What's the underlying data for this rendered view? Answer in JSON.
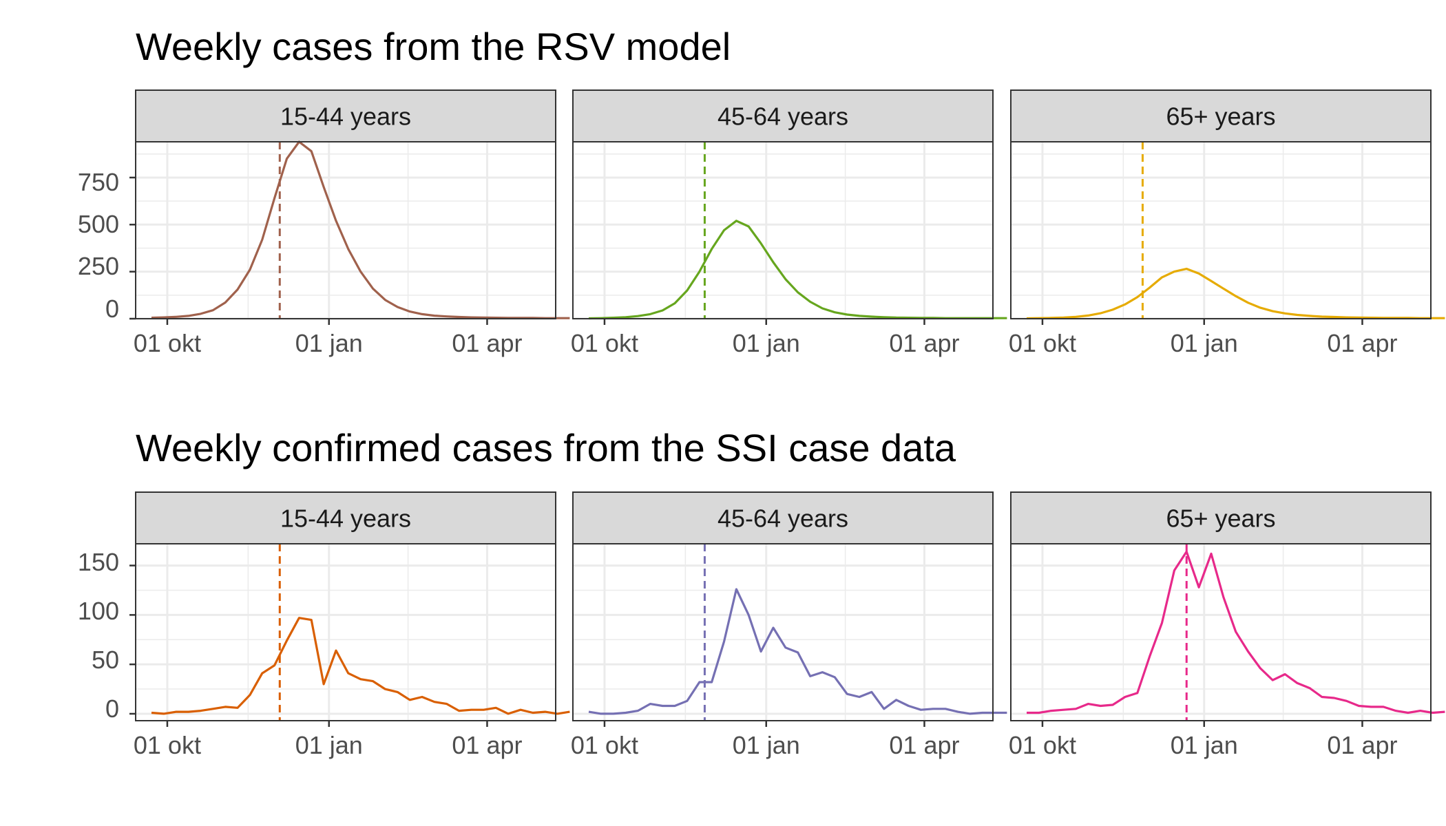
{
  "rows": [
    {
      "title": "Weekly cases from the RSV model",
      "y_ticks": [
        "0",
        "250",
        "500",
        "750"
      ]
    },
    {
      "title": "Weekly confirmed cases from the SSI case data",
      "y_ticks": [
        "0",
        "50",
        "100",
        "150"
      ]
    }
  ],
  "x_ticks": [
    "01 okt",
    "01 jan",
    "01 apr"
  ],
  "chart_data": [
    {
      "type": "line",
      "title": "Weekly cases from the RSV model",
      "facets": [
        "15-44 years",
        "45-64 years",
        "65+ years"
      ],
      "x_axis": {
        "type": "date",
        "start_week": "2022-09-22",
        "step_days": 7,
        "ticks": [
          "2022-10-01",
          "2023-01-01",
          "2023-04-01"
        ],
        "tick_labels": [
          "01 okt",
          "01 jan",
          "01 apr"
        ]
      },
      "ylim": [
        0,
        940
      ],
      "y_ticks": [
        0,
        250,
        500,
        750
      ],
      "grid": true,
      "peak_marker": {
        "style": "dashed vertical line",
        "dates": [
          "2022-12-04",
          "2022-11-27",
          "2022-11-27"
        ]
      },
      "series": [
        {
          "facet": "15-44 years",
          "color": "#A0614C",
          "values": [
            5,
            7,
            10,
            15,
            26,
            45,
            86,
            155,
            260,
            420,
            640,
            850,
            940,
            890,
            700,
            520,
            370,
            250,
            160,
            100,
            62,
            38,
            24,
            16,
            12,
            9,
            7,
            6,
            5,
            4,
            4,
            4,
            3,
            3,
            3
          ]
        },
        {
          "facet": "45-64 years",
          "color": "#66A61E",
          "values": [
            2,
            3,
            5,
            8,
            14,
            24,
            44,
            82,
            150,
            250,
            370,
            470,
            520,
            490,
            400,
            300,
            210,
            140,
            90,
            55,
            34,
            22,
            15,
            11,
            8,
            6,
            5,
            4,
            4,
            3,
            3,
            3,
            3,
            3,
            3
          ]
        },
        {
          "facet": "65+ years",
          "color": "#E6AB02",
          "values": [
            2,
            3,
            4,
            6,
            10,
            17,
            29,
            48,
            76,
            115,
            165,
            220,
            250,
            265,
            240,
            200,
            160,
            120,
            85,
            58,
            40,
            28,
            20,
            15,
            11,
            9,
            7,
            6,
            5,
            4,
            4,
            4,
            3,
            3,
            3
          ]
        }
      ]
    },
    {
      "type": "line",
      "title": "Weekly confirmed cases from the SSI case data",
      "facets": [
        "15-44 years",
        "45-64 years",
        "65+ years"
      ],
      "x_axis": {
        "type": "date",
        "start_week": "2022-09-22",
        "step_days": 7,
        "ticks": [
          "2022-10-01",
          "2023-01-01",
          "2023-04-01"
        ],
        "tick_labels": [
          "01 okt",
          "01 jan",
          "01 apr"
        ]
      },
      "ylim": [
        -7,
        172
      ],
      "y_ticks": [
        0,
        50,
        100,
        150
      ],
      "grid": true,
      "peak_marker": {
        "style": "dashed vertical line",
        "dates": [
          "2022-12-04",
          "2022-11-27",
          "2022-12-22"
        ]
      },
      "series": [
        {
          "facet": "15-44 years",
          "color": "#D95F02",
          "values": [
            1,
            0,
            2,
            2,
            3,
            5,
            7,
            6,
            19,
            41,
            49,
            74,
            97,
            95,
            30,
            64,
            41,
            35,
            33,
            25,
            22,
            14,
            17,
            12,
            10,
            3,
            4,
            4,
            6,
            0,
            4,
            1,
            2,
            0,
            2
          ]
        },
        {
          "facet": "45-64 years",
          "color": "#7570B3",
          "values": [
            2,
            0,
            0,
            1,
            3,
            10,
            8,
            8,
            13,
            32,
            32,
            73,
            126,
            100,
            63,
            87,
            67,
            62,
            38,
            42,
            37,
            20,
            17,
            22,
            5,
            14,
            8,
            4,
            5,
            5,
            2,
            0,
            1,
            1,
            1
          ]
        },
        {
          "facet": "65+ years",
          "color": "#E7298A",
          "values": [
            1,
            1,
            3,
            4,
            5,
            10,
            8,
            9,
            17,
            21,
            58,
            92,
            145,
            164,
            128,
            162,
            118,
            83,
            63,
            46,
            34,
            40,
            31,
            26,
            17,
            16,
            13,
            8,
            7,
            7,
            3,
            1,
            3,
            1,
            2
          ]
        }
      ]
    }
  ]
}
